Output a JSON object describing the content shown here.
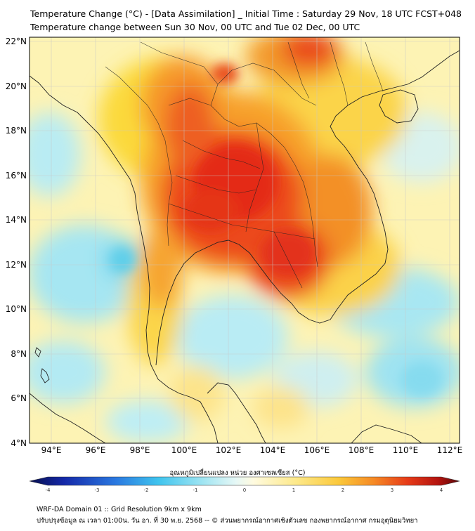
{
  "header": {
    "title_line1": "Temperature Change (°C) - [Data Assimilation] _ Initial Time : Saturday 29 Nov, 18 UTC FCST+048",
    "title_line2": "Temperature change between Sun 30 Nov, 00 UTC and Tue 02 Dec, 00 UTC"
  },
  "map": {
    "lon_ticks": [
      "94°E",
      "96°E",
      "98°E",
      "100°E",
      "102°E",
      "104°E",
      "106°E",
      "108°E",
      "110°E",
      "112°E"
    ],
    "lat_ticks": [
      "22°N",
      "20°N",
      "18°N",
      "16°N",
      "14°N",
      "12°N",
      "10°N",
      "8°N",
      "6°N",
      "4°N"
    ],
    "lon_range": [
      93,
      112.5
    ],
    "lat_range": [
      4,
      22.2
    ]
  },
  "colorbar": {
    "label": "อุณหภูมิเปลี่ยนแปลง หน่วย องศาเซลเซียส (°C)",
    "ticks": [
      "-4",
      "-3",
      "-2",
      "-1",
      "0",
      "1",
      "2",
      "3",
      "4"
    ],
    "range": [
      -4,
      4
    ]
  },
  "footer": {
    "line1": "WRF-DA Domain 01 :: Grid Resolution 9km x 9km",
    "line2": "ปรับปรุงข้อมูล ณ เวลา 01:00น. วัน อา. ที่ 30 พ.ย. 2568 -- © ส่วนพยากรณ์อากาศเชิงตัวเลข กองพยากรณ์อากาศ กรมอุตุนิยมวิทยา"
  }
}
